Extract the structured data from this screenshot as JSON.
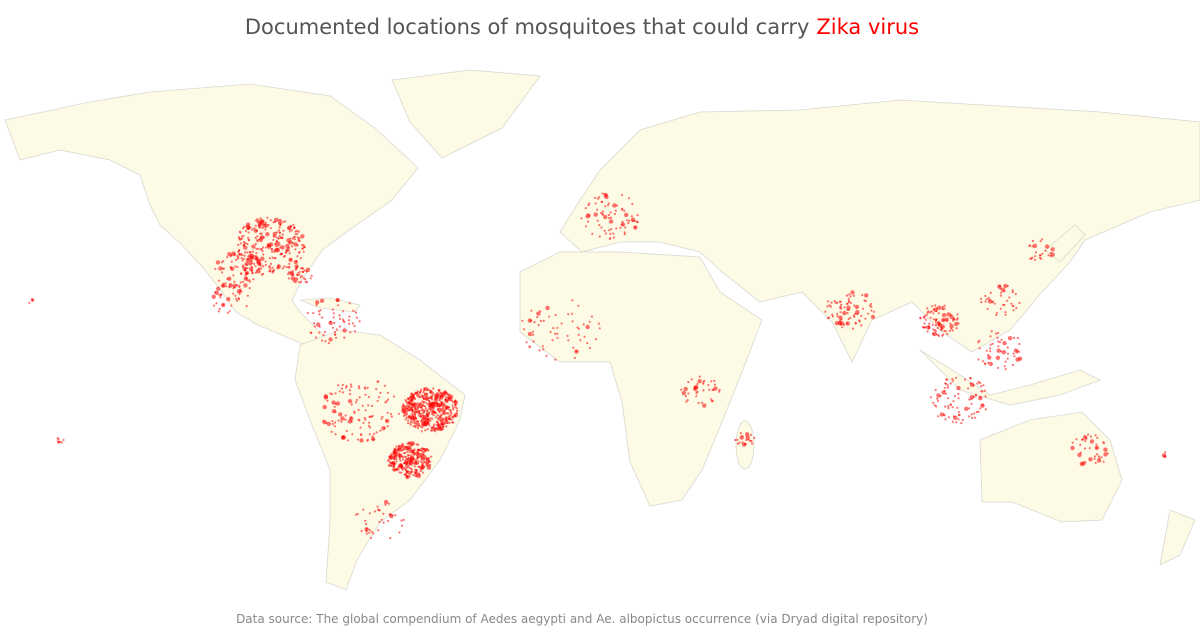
{
  "title": {
    "text": "Documented locations of mosquitoes that could carry",
    "highlight": "Zika virus"
  },
  "source": "Data source: The global compendium of Aedes aegypti and Ae. albopictus occurrence (via Dryad digital repository)"
}
